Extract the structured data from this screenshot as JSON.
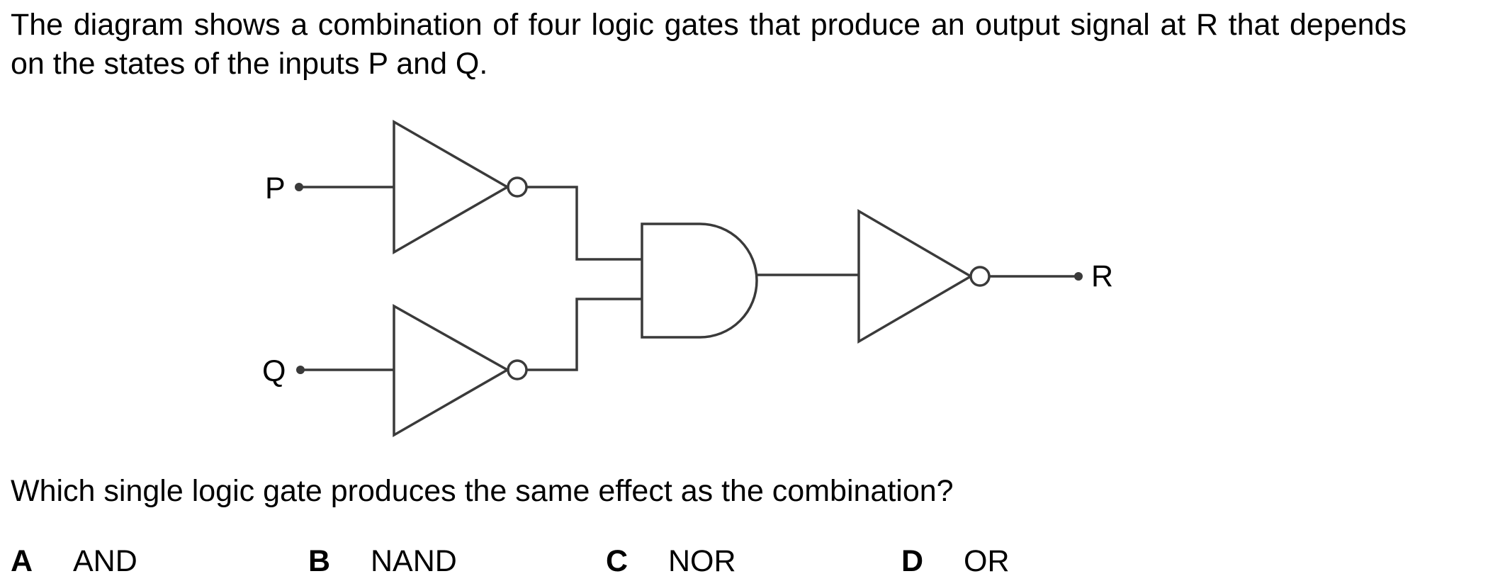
{
  "intro_text": "The diagram shows a combination of four logic gates that produce an output signal at R that depends on the states of the inputs P and Q.",
  "diagram": {
    "input_p_label": "P",
    "input_q_label": "Q",
    "output_label": "R",
    "gates": [
      "NOT",
      "NOT",
      "AND",
      "NOT"
    ]
  },
  "question_text": "Which single logic gate produces the same effect as the combination?",
  "options": [
    {
      "letter": "A",
      "text": "AND"
    },
    {
      "letter": "B",
      "text": "NAND"
    },
    {
      "letter": "C",
      "text": "NOR"
    },
    {
      "letter": "D",
      "text": "OR"
    }
  ]
}
